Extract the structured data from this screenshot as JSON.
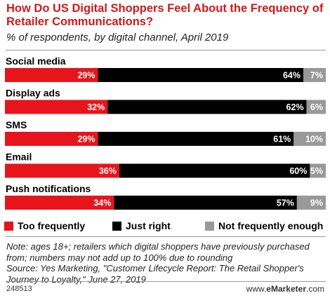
{
  "chart_data": {
    "type": "bar",
    "stacked": true,
    "orientation": "horizontal",
    "title": "How Do US Digital Shoppers Feel About the Frequency of Retailer Communications?",
    "subtitle": "% of respondents, by digital channel, April 2019",
    "categories": [
      "Social media",
      "Display ads",
      "SMS",
      "Email",
      "Push notifications"
    ],
    "series": [
      {
        "name": "Too frequently",
        "color": "#e8141b",
        "values": [
          29,
          32,
          29,
          36,
          34
        ]
      },
      {
        "name": "Just right",
        "color": "#000000",
        "values": [
          64,
          62,
          61,
          60,
          57
        ]
      },
      {
        "name": "Not frequently enough",
        "color": "#999999",
        "values": [
          7,
          6,
          10,
          5,
          9
        ]
      }
    ],
    "value_suffix": "%",
    "legend_position": "bottom"
  },
  "note": "Note: ages 18+; retailers which digital shoppers have previously purchased from; numbers may not add up to 100% due to rounding",
  "source": "Source: Yes Marketing, \"Customer Lifecycle Report: The Retail Shopper's Journey to Loyalty,\" June 27, 2019",
  "chart_id": "248513",
  "brand": {
    "prefix": "www.",
    "name": "eMarketer",
    "suffix": ".com"
  }
}
